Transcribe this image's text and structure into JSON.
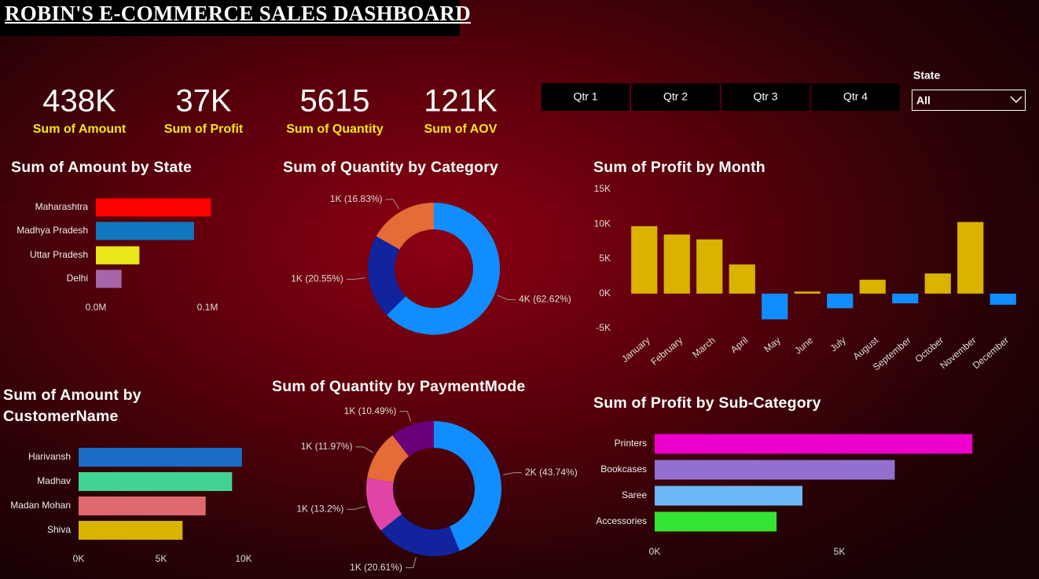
{
  "header": {
    "title": "ROBIN'S E-COMMERCE SALES DASHBOARD"
  },
  "kpis": [
    {
      "value": "438K",
      "label": "Sum of Amount"
    },
    {
      "value": "37K",
      "label": "Sum of Profit"
    },
    {
      "value": "5615",
      "label": "Sum of Quantity"
    },
    {
      "value": "121K",
      "label": "Sum of AOV"
    }
  ],
  "quarter_slicer": {
    "options": [
      "Qtr 1",
      "Qtr 2",
      "Qtr 3",
      "Qtr 4"
    ]
  },
  "state_slicer": {
    "label": "State",
    "selected": "All"
  },
  "chart_data": [
    {
      "type": "bar",
      "orientation": "horizontal",
      "title": "Sum of Amount by State",
      "categories": [
        "Maharashtra",
        "Madhya Pradesh",
        "Uttar Pradesh",
        "Delhi"
      ],
      "values": [
        103000,
        88000,
        39000,
        23000
      ],
      "colors": [
        "#FF0000",
        "#0F78BE",
        "#E8E81A",
        "#A865A8"
      ],
      "xlim": [
        0,
        110000
      ],
      "xticks": [
        {
          "value": 0,
          "label": "0.0M"
        },
        {
          "value": 100000,
          "label": "0.1M"
        }
      ]
    },
    {
      "type": "donut",
      "title": "Sum of Quantity by Category",
      "categories": [
        null,
        null,
        null
      ],
      "values": [
        3516,
        1154,
        945
      ],
      "value_labels": [
        "4K (62.62%)",
        "1K (20.55%)",
        "1K (16.83%)"
      ],
      "colors": [
        "#118DFF",
        "#12239E",
        "#E66C37"
      ]
    },
    {
      "type": "bar",
      "orientation": "vertical",
      "title": "Sum of Profit by Month",
      "categories": [
        "January",
        "February",
        "March",
        "April",
        "May",
        "June",
        "July",
        "August",
        "September",
        "October",
        "November",
        "December"
      ],
      "values": [
        9700,
        8500,
        7800,
        4200,
        -3700,
        300,
        -2100,
        2000,
        -1400,
        2900,
        10300,
        -1600
      ],
      "color": "#D9B300",
      "negative_color": "#118DFF",
      "ylim": [
        -5000,
        15000
      ],
      "yticks": [
        {
          "value": -5000,
          "label": "-5K"
        },
        {
          "value": 0,
          "label": "0K"
        },
        {
          "value": 5000,
          "label": "5K"
        },
        {
          "value": 10000,
          "label": "10K"
        },
        {
          "value": 15000,
          "label": "15K"
        }
      ]
    },
    {
      "type": "bar",
      "orientation": "horizontal",
      "title": "Sum of Amount by CustomerName",
      "categories": [
        "Harivansh",
        "Madhav",
        "Madan Mohan",
        "Shiva"
      ],
      "values": [
        9900,
        9300,
        7700,
        6300
      ],
      "colors": [
        "#1A6CC4",
        "#41D393",
        "#E0686F",
        "#D9B300"
      ],
      "xlim": [
        0,
        10000
      ],
      "xticks": [
        {
          "value": 0,
          "label": "0K"
        },
        {
          "value": 5000,
          "label": "5K"
        },
        {
          "value": 10000,
          "label": "10K"
        }
      ]
    },
    {
      "type": "donut",
      "title": "Sum of Quantity by PaymentMode",
      "categories": [
        null,
        null,
        null,
        null,
        null
      ],
      "values": [
        2456,
        1157,
        741,
        672,
        589
      ],
      "value_labels": [
        "2K (43.74%)",
        "1K (20.61%)",
        "1K (13.2%)",
        "1K (11.97%)",
        "1K (10.49%)"
      ],
      "colors": [
        "#118DFF",
        "#12239E",
        "#E044A7",
        "#E66C37",
        "#6B007B"
      ]
    },
    {
      "type": "bar",
      "orientation": "horizontal",
      "title": "Sum of Profit by Sub-Category",
      "categories": [
        "Printers",
        "Bookcases",
        "Saree",
        "Accessories"
      ],
      "values": [
        8600,
        6500,
        4000,
        3300
      ],
      "colors": [
        "#EE00CC",
        "#9370D0",
        "#6CB8F8",
        "#33E533"
      ],
      "xlim": [
        0,
        9000
      ],
      "xticks": [
        {
          "value": 0,
          "label": "0K"
        },
        {
          "value": 5000,
          "label": "5K"
        }
      ]
    }
  ]
}
